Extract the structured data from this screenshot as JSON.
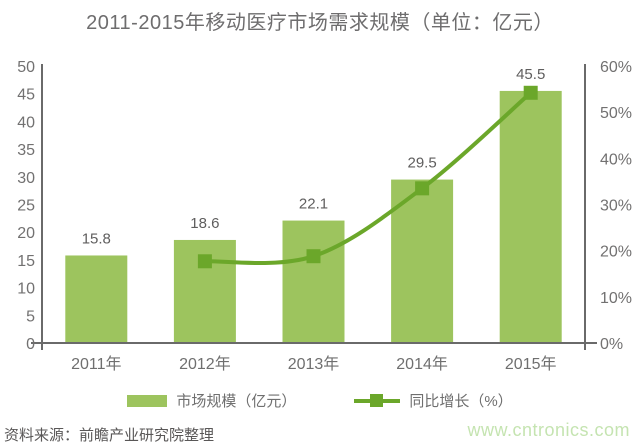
{
  "title": "2011-2015年移动医疗市场需求规模（单位：亿元）",
  "source_note": "资料来源：前瞻产业研究院整理",
  "watermark": "www.cntronics.com",
  "colors": {
    "bar": "#9DC45E",
    "line": "#6BA72A",
    "axis": "#6A6A6A",
    "tick_label": "#727171",
    "value_label": "#5F5E5E",
    "category_label": "#6F6F6F",
    "title_text": "#6E6D6E",
    "source_text": "#595757",
    "watermark_text": "#C5E4B1"
  },
  "legend": [
    {
      "type": "bar",
      "label": "市场规模（亿元）"
    },
    {
      "type": "line",
      "label": "同比增长（%）"
    }
  ],
  "chart_data": {
    "type": "bar",
    "title": "2011-2015年移动医疗市场需求规模（单位：亿元）",
    "categories": [
      "2011年",
      "2012年",
      "2013年",
      "2014年",
      "2015年"
    ],
    "series": [
      {
        "name": "市场规模（亿元）",
        "type": "bar",
        "axis": "left",
        "values": [
          15.8,
          18.6,
          22.1,
          29.5,
          45.5
        ]
      },
      {
        "name": "同比增长（%）",
        "type": "line",
        "axis": "right",
        "values": [
          null,
          17.7,
          18.8,
          33.5,
          54.2
        ]
      }
    ],
    "left_axis": {
      "min": 0,
      "max": 50,
      "ticks": [
        "0",
        "5",
        "10",
        "15",
        "20",
        "25",
        "30",
        "35",
        "40",
        "45",
        "50"
      ]
    },
    "right_axis": {
      "min": 0,
      "max": 60,
      "ticks": [
        "0%",
        "10%",
        "20%",
        "30%",
        "40%",
        "50%",
        "60%"
      ]
    },
    "grid": false,
    "legend_position": "bottom",
    "data_labels": true
  }
}
